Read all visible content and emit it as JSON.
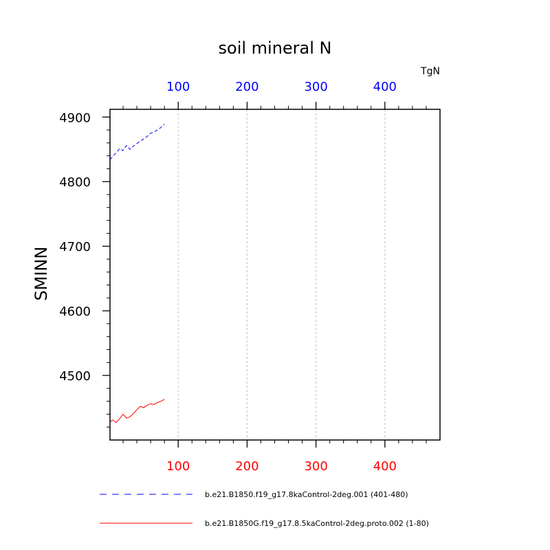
{
  "chart_data": {
    "type": "line",
    "title": "soil mineral N",
    "units_label": "TgN",
    "ylabel": "SMINN",
    "xlim": [
      1,
      480
    ],
    "ylim": [
      4400,
      4912
    ],
    "y_ticks": [
      "4500",
      "4600",
      "4700",
      "4800",
      "4900"
    ],
    "x_ticks_top": [
      "100",
      "200",
      "300",
      "400"
    ],
    "x_ticks_bottom": [
      "100",
      "200",
      "300",
      "400"
    ],
    "grid": "vertical-dashed",
    "legend_position": "bottom",
    "colors": {
      "top_axis": "#0000ff",
      "bottom_axis": "#ff0000"
    },
    "series": [
      {
        "name": "b.e21.B1850.f19_g17.8kaControl-2deg.001 (401-480)",
        "color": "#0000ff",
        "style": "dashed",
        "axis": "top",
        "x": [
          1,
          5,
          10,
          15,
          20,
          25,
          30,
          35,
          40,
          45,
          50,
          55,
          60,
          65,
          70,
          75,
          80
        ],
        "values": [
          4834,
          4839,
          4845,
          4851,
          4848,
          4856,
          4850,
          4855,
          4859,
          4863,
          4866,
          4870,
          4875,
          4877,
          4880,
          4884,
          4889
        ]
      },
      {
        "name": "b.e21.B1850G.f19_g17.8.5kaControl-2deg.proto.002 (1-80)",
        "color": "#ff0000",
        "style": "solid",
        "axis": "bottom",
        "x": [
          1,
          5,
          10,
          15,
          20,
          25,
          30,
          35,
          40,
          45,
          50,
          55,
          60,
          65,
          70,
          75,
          80
        ],
        "values": [
          4428,
          4431,
          4427,
          4433,
          4440,
          4434,
          4436,
          4441,
          4447,
          4452,
          4450,
          4454,
          4456,
          4455,
          4458,
          4460,
          4463
        ]
      }
    ]
  }
}
